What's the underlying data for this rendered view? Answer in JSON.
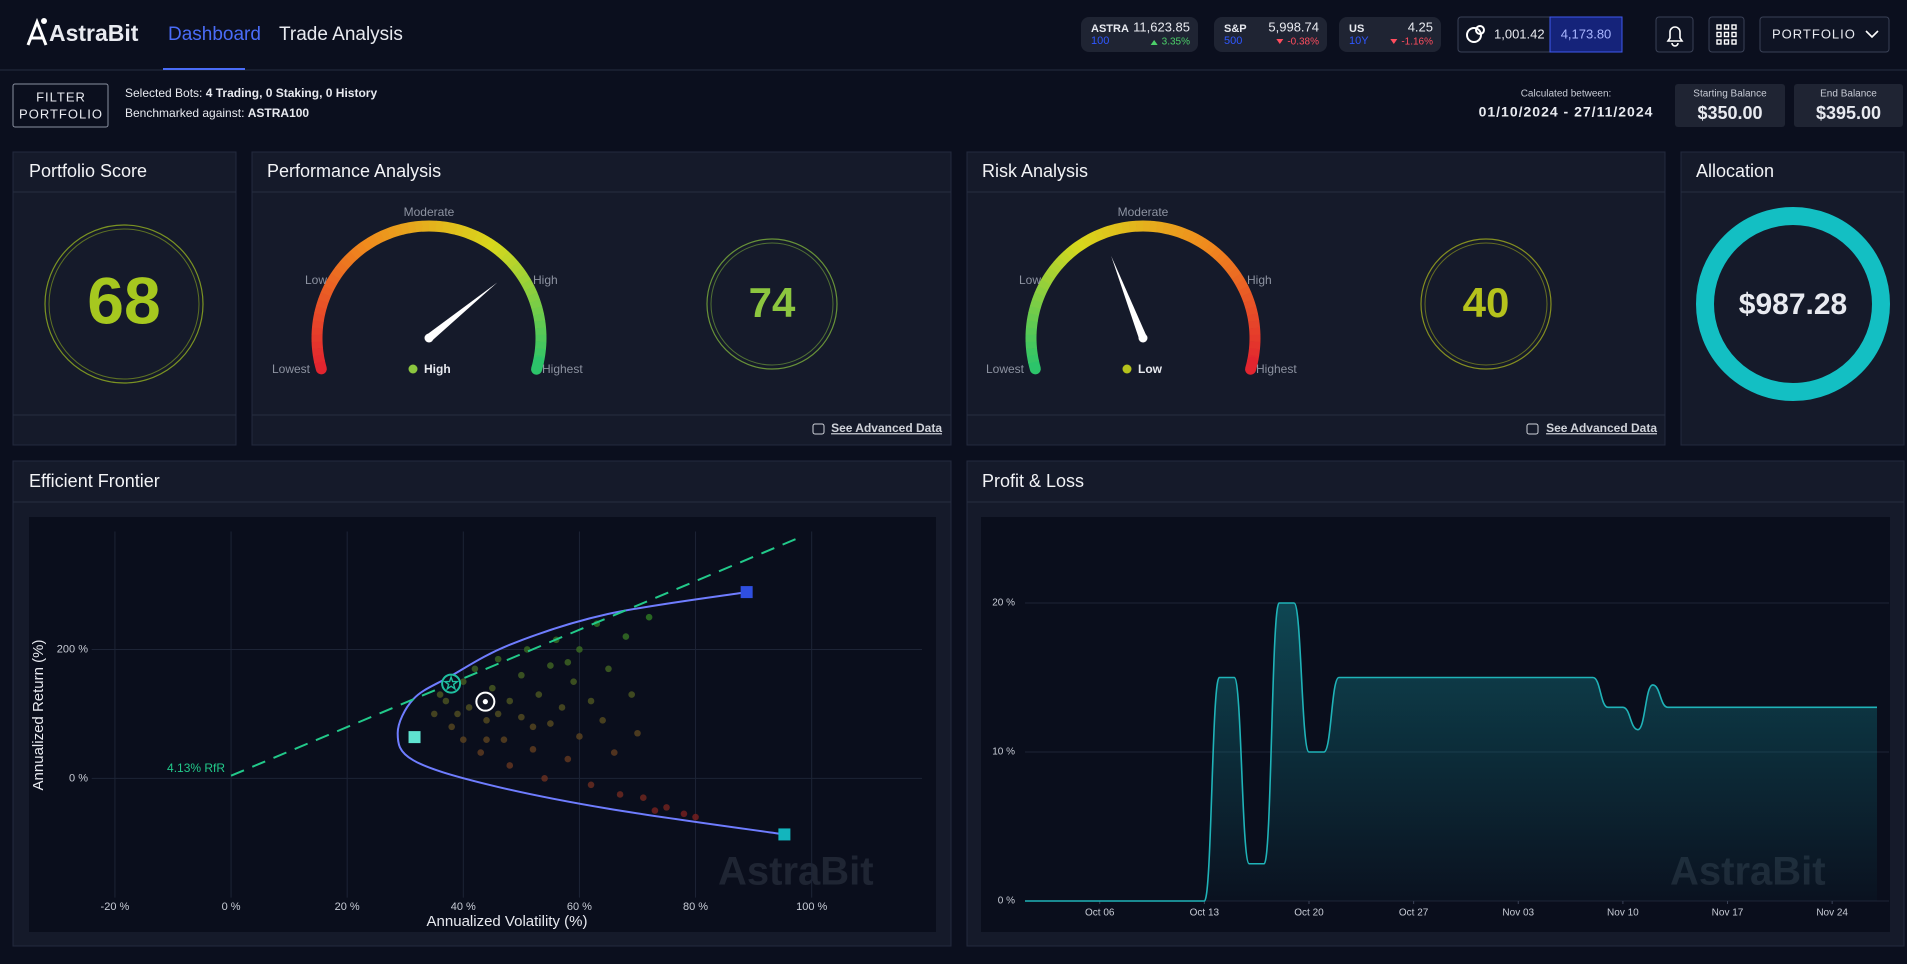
{
  "header": {
    "logo": "AstraBit",
    "nav": [
      "Dashboard",
      "Trade Analysis"
    ],
    "tickers": [
      {
        "symbol": "ASTRA",
        "sub": "100",
        "value": "11,623.85",
        "change": "3.35%"
      },
      {
        "symbol": "S&P",
        "sub": "500",
        "value": "5,998.74",
        "change": "-0.38%"
      },
      {
        "symbol": "US",
        "sub": "10Y",
        "value": "4.25",
        "change": "-1.16%"
      }
    ],
    "wallet": {
      "balance": "1,001.42",
      "total": "4,173.80"
    },
    "portfolio_menu": "PORTFOLIO"
  },
  "filter": {
    "button": [
      "FILTER",
      "PORTFOLIO"
    ],
    "selected_label": "Selected Bots:",
    "selected_value": "4 Trading, 0 Staking, 0 History",
    "benchmark_label": "Benchmarked against:",
    "benchmark_value": "ASTRA100"
  },
  "period": {
    "label": "Calculated between:",
    "range": "01/10/2024 - 27/11/2024"
  },
  "balances": [
    {
      "label": "Starting Balance",
      "value": "$350.00"
    },
    {
      "label": "End Balance",
      "value": "$395.00"
    }
  ],
  "portfolio_score": {
    "title": "Portfolio Score",
    "score": 68,
    "color": "#a6c81f"
  },
  "performance": {
    "title": "Performance Analysis",
    "gauge_labels": [
      "Lowest",
      "Low",
      "Moderate",
      "High",
      "Highest"
    ],
    "status": "High",
    "score": 74,
    "color": "#8cc63f",
    "link": "See Advanced Data"
  },
  "risk": {
    "title": "Risk Analysis",
    "gauge_labels": [
      "Lowest",
      "Low",
      "Moderate",
      "High",
      "Highest"
    ],
    "status": "Low",
    "score": 40,
    "color": "#b5c21c",
    "link": "See Advanced Data"
  },
  "allocation": {
    "title": "Allocation",
    "value": "$987.28",
    "color": "#13bfc3"
  },
  "chart_data": [
    {
      "type": "scatter",
      "title": "Efficient Frontier",
      "x_label": "Annualized Volatility (%)",
      "y_label": "Annualized Return (%)",
      "xlim": [
        -24,
        119
      ],
      "ylim": [
        -185,
        383
      ],
      "xticks": [
        {
          "value": -20,
          "label": "-20 %"
        },
        {
          "value": 0,
          "label": "0 %"
        },
        {
          "value": 20,
          "label": "20 %"
        },
        {
          "value": 40,
          "label": "40 %"
        },
        {
          "value": 60,
          "label": "60 %"
        },
        {
          "value": 80,
          "label": "80 %"
        },
        {
          "value": 100,
          "label": "100 %"
        }
      ],
      "yticks": [
        {
          "value": 0,
          "label": "0 %"
        },
        {
          "value": 200,
          "label": "200 %"
        }
      ],
      "grid": true,
      "series": [
        {
          "type": "scatter",
          "colors": [
            "#7a1f1f",
            "#2f7d24"
          ],
          "x": [
            35,
            36,
            38,
            40,
            40,
            41,
            42,
            43,
            44,
            45,
            46,
            47,
            48,
            48,
            50,
            50,
            51,
            52,
            53,
            54,
            55,
            55,
            56,
            57,
            58,
            59,
            60,
            60,
            62,
            62,
            63,
            64,
            65,
            66,
            67,
            68,
            69,
            70,
            71,
            72,
            73,
            75,
            78,
            80,
            37,
            39,
            44,
            46,
            52,
            58
          ],
          "values": [
            100,
            130,
            80,
            150,
            60,
            110,
            170,
            40,
            90,
            140,
            185,
            60,
            120,
            20,
            160,
            95,
            200,
            45,
            130,
            0,
            175,
            85,
            215,
            110,
            30,
            150,
            200,
            65,
            -10,
            120,
            240,
            90,
            170,
            40,
            -25,
            220,
            130,
            70,
            -30,
            250,
            -50,
            -45,
            -55,
            -60,
            120,
            100,
            60,
            100,
            80,
            180
          ]
        },
        {
          "type": "line",
          "color": "#6f7dff",
          "x": [
            88.8,
            64.9,
            48.2,
            37.7,
            31.4,
            28.7,
            31.4,
            44,
            64.9,
            95.3
          ],
          "values": [
            289,
            255,
            208,
            158,
            123,
            70,
            28,
            -9,
            -47,
            -87
          ]
        },
        {
          "type": "line",
          "dashed": true,
          "color": "#22c98a",
          "x": [
            0,
            98
          ],
          "values": [
            4.13,
            374
          ]
        }
      ],
      "markers": [
        {
          "symbol": "star",
          "color": "#1fbfa0",
          "x": 37.9,
          "y": 147
        },
        {
          "symbol": "target",
          "color": "#ffffff",
          "x": 43.8,
          "y": 119
        },
        {
          "symbol": "square",
          "color": "#5fe3d0",
          "x": 31.6,
          "y": 64
        },
        {
          "symbol": "square",
          "color": "#2f4fe0",
          "x": 88.8,
          "y": 289
        },
        {
          "symbol": "square",
          "color": "#13b5bd",
          "x": 95.3,
          "y": -87
        }
      ],
      "annotation": "4.13% RfR",
      "watermark": "AstraBit"
    },
    {
      "type": "line",
      "title": "Profit & Loss",
      "color": "#1fb3b8",
      "x": [
        "Oct 01",
        "Oct 12",
        "Oct 13",
        "Oct 14",
        "Oct 15",
        "Oct 16",
        "Oct 17",
        "Oct 18",
        "Oct 19",
        "Oct 20",
        "Oct 21",
        "Oct 22",
        "Nov 08",
        "Nov 09",
        "Nov 10",
        "Nov 11",
        "Nov 12",
        "Nov 13",
        "Nov 27"
      ],
      "values": [
        0,
        0,
        0,
        15,
        15,
        2.5,
        2.5,
        20,
        20,
        10,
        10,
        15,
        15,
        13,
        13,
        11.5,
        14.5,
        13,
        13
      ],
      "xlim": [
        "Oct 01",
        "Nov 27"
      ],
      "ylim": [
        0,
        20
      ],
      "xticks": [
        "Oct 06",
        "Oct 13",
        "Oct 20",
        "Oct 27",
        "Nov 03",
        "Nov 10",
        "Nov 17",
        "Nov 24"
      ],
      "yticks": [
        {
          "value": 0,
          "label": "0 %"
        },
        {
          "value": 10,
          "label": "10 %"
        },
        {
          "value": 20,
          "label": "20 %"
        }
      ],
      "grid": true,
      "watermark": "AstraBit"
    }
  ]
}
